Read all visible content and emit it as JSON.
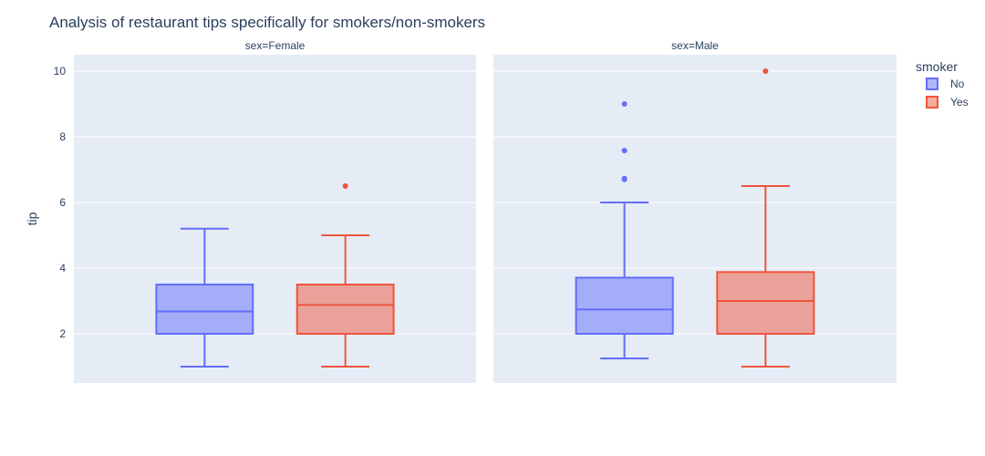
{
  "chart_data": {
    "type": "box",
    "title": "Analysis of restaurant tips specifically for smokers/non-smokers",
    "ylabel": "tip",
    "xlabel": "",
    "ylim": [
      0.5,
      10.5
    ],
    "yticks": [
      2,
      4,
      6,
      8,
      10
    ],
    "grid": true,
    "legend": {
      "title": "smoker",
      "placement": "top-right",
      "entries": [
        "No",
        "Yes"
      ]
    },
    "colors": {
      "No": "#636efa",
      "Yes": "#ef553b",
      "plot_bg": "#e5ecf6",
      "grid": "#ffffff",
      "text": "#2a3f5f"
    },
    "facets": [
      {
        "label": "sex=Female",
        "boxes": [
          {
            "smoker": "No",
            "min": 1.0,
            "q1": 2.0,
            "median": 2.68,
            "q3": 3.5,
            "max": 5.2,
            "outliers": []
          },
          {
            "smoker": "Yes",
            "min": 1.0,
            "q1": 2.0,
            "median": 2.88,
            "q3": 3.5,
            "max": 5.0,
            "outliers": [
              6.5
            ]
          }
        ]
      },
      {
        "label": "sex=Male",
        "boxes": [
          {
            "smoker": "No",
            "min": 1.25,
            "q1": 2.0,
            "median": 2.74,
            "q3": 3.71,
            "max": 6.0,
            "outliers": [
              6.7,
              6.73,
              7.58,
              9.0
            ]
          },
          {
            "smoker": "Yes",
            "min": 1.0,
            "q1": 2.0,
            "median": 3.0,
            "q3": 3.88,
            "max": 6.5,
            "outliers": [
              10.0
            ]
          }
        ]
      }
    ]
  }
}
